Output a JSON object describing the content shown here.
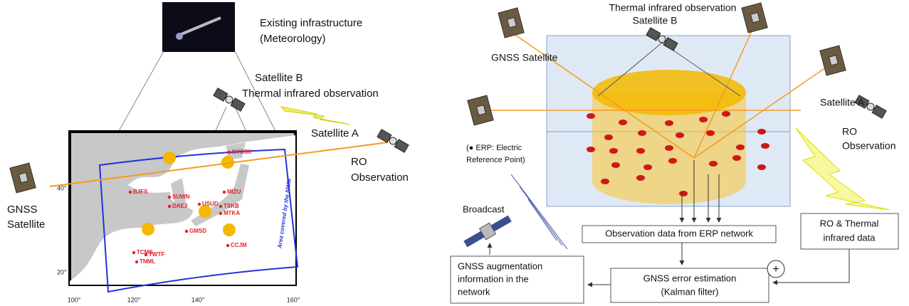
{
  "left": {
    "photo_caption": [
      "Existing infrastructure",
      "(Meteorology)"
    ],
    "satellite_b": "Satellite B",
    "satellite_b_role": "Thermal infrared observation",
    "satellite_a": "Satellite A",
    "ro_observation": [
      "RO",
      "Observation"
    ],
    "gnss_satellite": [
      "GNSS",
      "Satellite"
    ],
    "stations": [
      "NYSSK",
      "BJFS",
      "SUWN",
      "DAEJ",
      "USUD",
      "MIZU",
      "TSKB",
      "MTKA",
      "GMSD",
      "TCMS",
      "TWTF",
      "TNML",
      "CCJM"
    ],
    "area_label": "Area covered by the NWM",
    "lat_labels": [
      "40°",
      "20°"
    ],
    "lon_labels": [
      "100°",
      "120°",
      "140°",
      "160°"
    ]
  },
  "right": {
    "satellite_b_role": "Thermal infrared observation",
    "satellite_b": "Satellite B",
    "gnss_satellite": "GNSS Satellite",
    "satellite_a": "Satellite A",
    "ro_observation": [
      "RO",
      "Observation"
    ],
    "erp_note": [
      "(● ERP: Electric",
      "Reference Point)"
    ],
    "broadcast": "Broadcast",
    "observation_box": "Observation data from ERP network",
    "ro_box": [
      "RO & Thermal",
      "infrared data"
    ],
    "estimation_box": [
      "GNSS error estimation",
      "(Kalman filter)"
    ],
    "augmentation_box": [
      "GNSS augmentation",
      "information in the",
      "network"
    ],
    "plus": "+"
  }
}
